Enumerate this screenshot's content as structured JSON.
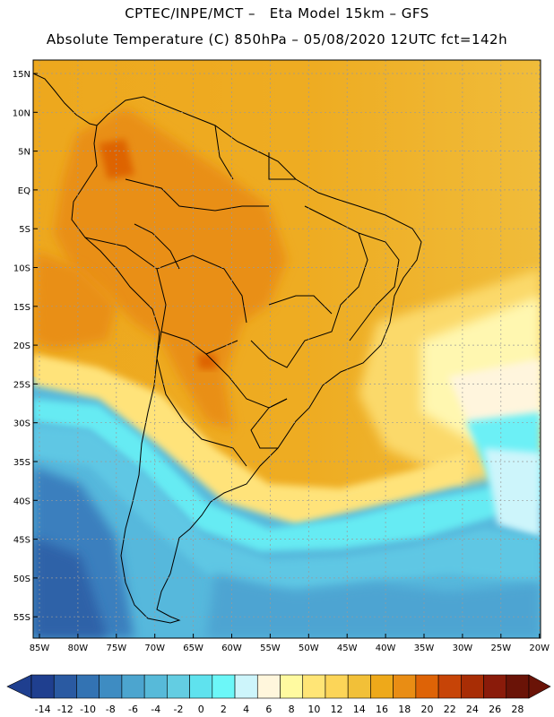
{
  "header": {
    "line1": "CPTEC/INPE/MCT –   Eta Model 15km – GFS",
    "line2": "Absolute Temperature (C) 850hPa – 05/08/2020 12UTC fct=142h"
  },
  "map": {
    "lat_labels": [
      "15N",
      "10N",
      "5N",
      "EQ",
      "5S",
      "10S",
      "15S",
      "20S",
      "25S",
      "30S",
      "35S",
      "40S",
      "45S",
      "50S",
      "55S"
    ],
    "lon_labels": [
      "85W",
      "80W",
      "75W",
      "70W",
      "65W",
      "60W",
      "55W",
      "50W",
      "45W",
      "40W",
      "35W",
      "30W",
      "25W",
      "20W"
    ]
  },
  "colorbar": {
    "labels": [
      "-14",
      "-12",
      "-10",
      "-8",
      "-6",
      "-4",
      "-2",
      "0",
      "2",
      "4",
      "6",
      "8",
      "10",
      "12",
      "14",
      "16",
      "18",
      "20",
      "22",
      "24",
      "26",
      "28"
    ],
    "colors": [
      "#1f3f8f",
      "#2a5aa2",
      "#3373b3",
      "#3e8cc2",
      "#4ca5cf",
      "#57bad9",
      "#63cde2",
      "#5fe2ee",
      "#6cf7f8",
      "#cdf5fb",
      "#fff6dc",
      "#fffaa0",
      "#ffe576",
      "#fcd558",
      "#f2c038",
      "#eea91a",
      "#e98d14",
      "#de6306",
      "#c74407",
      "#a82d05",
      "#8a1b0a",
      "#6a1307"
    ]
  }
}
